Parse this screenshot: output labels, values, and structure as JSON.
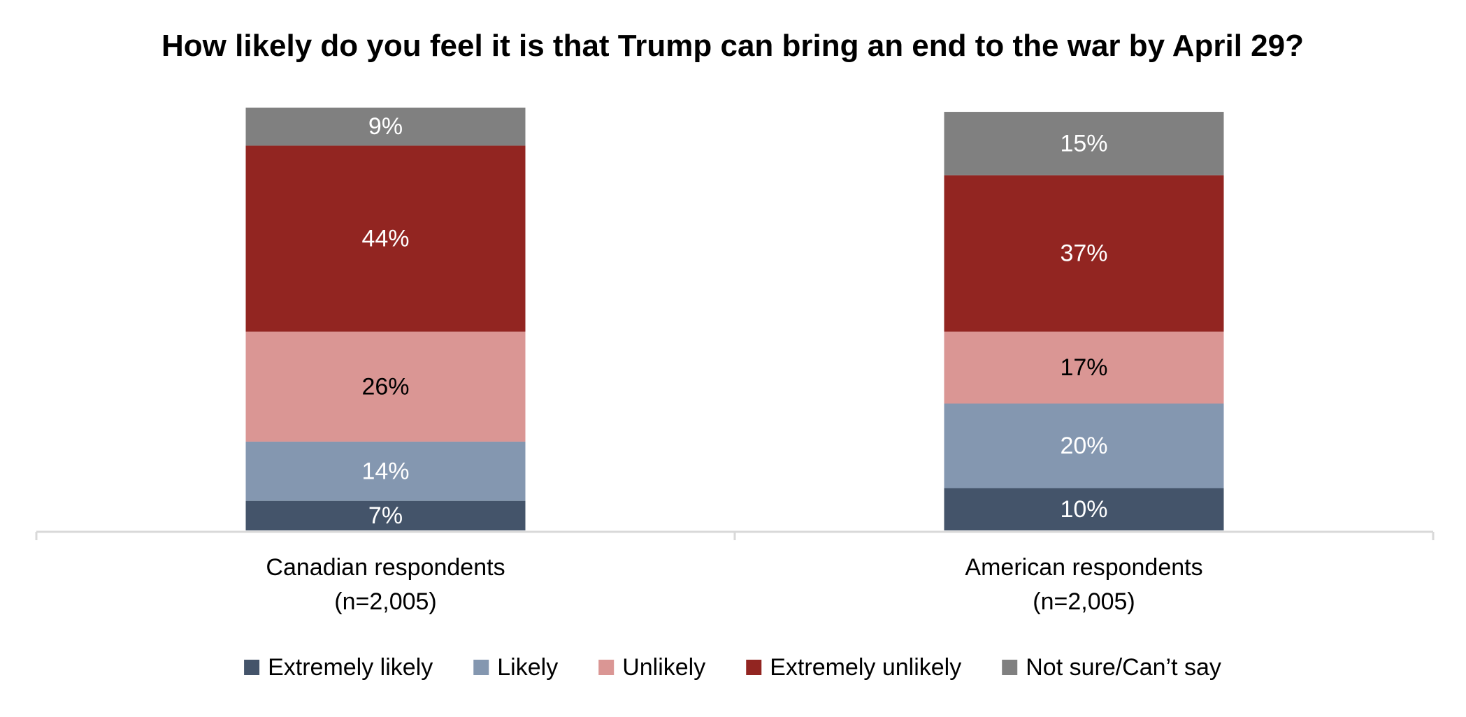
{
  "chart_data": {
    "type": "bar",
    "stacked": true,
    "percent": true,
    "title": "How likely do you feel it is that Trump can bring an end to the war by April 29?",
    "xlabel": "",
    "ylabel": "",
    "ylim": [
      0,
      100
    ],
    "grid": false,
    "legend_position": "bottom",
    "categories": [
      [
        "Canadian respondents",
        "(n=2,005)"
      ],
      [
        "American respondents",
        "(n=2,005)"
      ]
    ],
    "series": [
      {
        "name": "Extremely likely",
        "values": [
          7,
          10
        ],
        "labels": [
          "7%",
          "10%"
        ],
        "color": "#44546a",
        "label_color": "#ffffff"
      },
      {
        "name": "Likely",
        "values": [
          14,
          20
        ],
        "labels": [
          "14%",
          "20%"
        ],
        "color": "#8497b0",
        "label_color": "#ffffff"
      },
      {
        "name": "Unlikely",
        "values": [
          26,
          17
        ],
        "labels": [
          "26%",
          "17%"
        ],
        "color": "#da9694",
        "label_color": "#000000"
      },
      {
        "name": "Extremely unlikely",
        "values": [
          44,
          37
        ],
        "labels": [
          "44%",
          "37%"
        ],
        "color": "#922521",
        "label_color": "#ffffff"
      },
      {
        "name": "Not sure/Can’t say",
        "values": [
          9,
          15
        ],
        "labels": [
          "9%",
          "15%"
        ],
        "color": "#808080",
        "label_color": "#ffffff"
      }
    ]
  },
  "colors": {
    "axis": "#d9d9d9",
    "text": "#000000",
    "background": "#ffffff"
  }
}
